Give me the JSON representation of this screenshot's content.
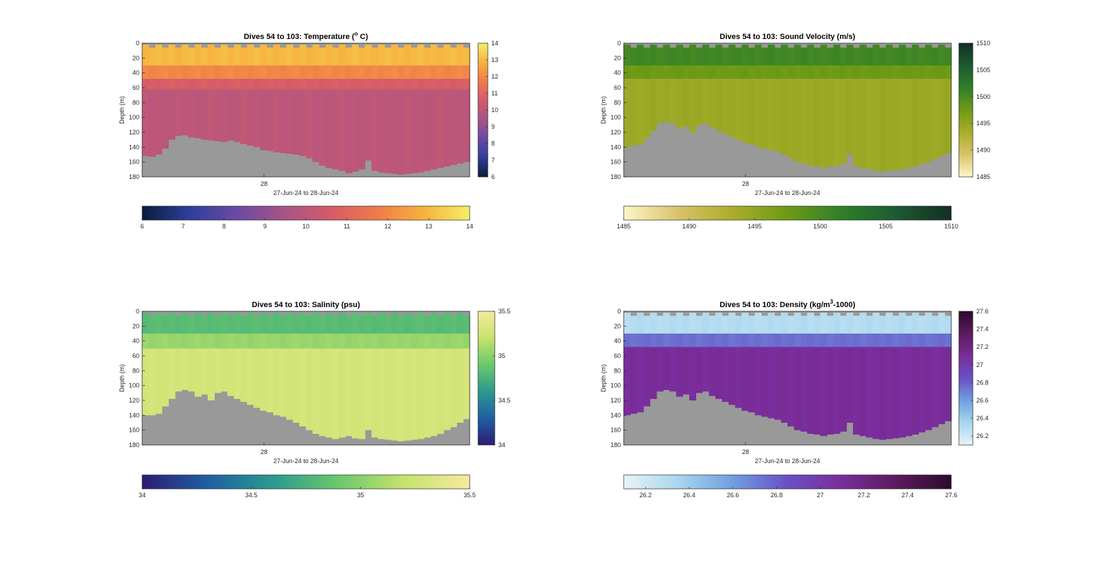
{
  "figure": {
    "background": "#ffffff",
    "no_data_color": "#999999"
  },
  "chart_data": [
    {
      "type": "heatmap",
      "title_main": "Dives 54 to 103: Temperature (",
      "title_sup": "o",
      "title_end": " C)",
      "xlabel": "27-Jun-24 to 28-Jun-24",
      "ylabel": "Depth (m)",
      "x_tick_labels": [
        "28"
      ],
      "y_tick_labels": [
        "0",
        "20",
        "40",
        "60",
        "80",
        "100",
        "120",
        "140",
        "160",
        "180"
      ],
      "ylim": [
        0,
        180
      ],
      "y_reversed": true,
      "dives": [
        54,
        103
      ],
      "cmap": [
        "#0b1b3a",
        "#2c3e9c",
        "#6a4aa3",
        "#a55488",
        "#d45a6a",
        "#f07a4a",
        "#f6b13e",
        "#f3ef66"
      ],
      "clim": [
        6,
        14
      ],
      "layers": [
        {
          "value": 13.0,
          "top": 0,
          "bottom": 30
        },
        {
          "value": 12.0,
          "top": 30,
          "bottom": 48
        },
        {
          "value": 10.7,
          "top": 48,
          "bottom": 62
        },
        {
          "value": 10.0,
          "top": 62,
          "bottom": 180
        }
      ],
      "colorbar_right_ticks": [
        "6",
        "7",
        "8",
        "9",
        "10",
        "11",
        "12",
        "13",
        "14"
      ],
      "colorbar_bottom_ticks": [
        "6",
        "7",
        "8",
        "9",
        "10",
        "11",
        "12",
        "13",
        "14"
      ],
      "bottom_depth": [
        152,
        153,
        150,
        142,
        130,
        125,
        124,
        127,
        128,
        130,
        131,
        132,
        133,
        131,
        133,
        136,
        138,
        140,
        144,
        145,
        147,
        148,
        149,
        150,
        152,
        155,
        160,
        165,
        168,
        170,
        172,
        175,
        173,
        170,
        158,
        172,
        174,
        175,
        176,
        177,
        176,
        175,
        174,
        172,
        170,
        168,
        166,
        164,
        162,
        160
      ]
    },
    {
      "type": "heatmap",
      "title_main": "Dives 54 to 103: Sound Velocity (m/s)",
      "title_sup": "",
      "title_end": "",
      "xlabel": "27-Jun-24 to 28-Jun-24",
      "ylabel": "Depth (m)",
      "x_tick_labels": [
        "28"
      ],
      "y_tick_labels": [
        "0",
        "20",
        "40",
        "60",
        "80",
        "100",
        "120",
        "140",
        "160",
        "180"
      ],
      "ylim": [
        0,
        180
      ],
      "y_reversed": true,
      "dives": [
        54,
        103
      ],
      "cmap": [
        "#fdf6c8",
        "#d9c26a",
        "#a9ad2a",
        "#6d9a16",
        "#2f7f2a",
        "#1c5a31",
        "#132e22"
      ],
      "clim": [
        1485,
        1510
      ],
      "layers": [
        {
          "value": 1500.5,
          "top": 0,
          "bottom": 30
        },
        {
          "value": 1497.5,
          "top": 30,
          "bottom": 48
        },
        {
          "value": 1494.3,
          "top": 48,
          "bottom": 180
        }
      ],
      "colorbar_right_ticks": [
        "1485",
        "1490",
        "1495",
        "1500",
        "1505",
        "1510"
      ],
      "colorbar_bottom_ticks": [
        "1485",
        "1490",
        "1495",
        "1500",
        "1505",
        "1510"
      ],
      "bottom_depth": [
        140,
        138,
        136,
        128,
        118,
        108,
        106,
        108,
        115,
        112,
        120,
        110,
        108,
        114,
        118,
        122,
        126,
        130,
        134,
        136,
        140,
        142,
        144,
        146,
        150,
        155,
        160,
        162,
        165,
        166,
        168,
        166,
        165,
        162,
        150,
        166,
        168,
        170,
        172,
        173,
        172,
        171,
        170,
        168,
        166,
        163,
        160,
        156,
        152,
        148
      ]
    },
    {
      "type": "heatmap",
      "title_main": "Dives 54 to 103: Salinity (psu)",
      "title_sup": "",
      "title_end": "",
      "xlabel": "27-Jun-24 to 28-Jun-24",
      "ylabel": "Depth (m)",
      "x_tick_labels": [
        "28"
      ],
      "y_tick_labels": [
        "0",
        "20",
        "40",
        "60",
        "80",
        "100",
        "120",
        "140",
        "160",
        "180"
      ],
      "ylim": [
        0,
        180
      ],
      "y_reversed": true,
      "dives": [
        54,
        103
      ],
      "cmap": [
        "#2b1c72",
        "#1f5fa3",
        "#2b9a8f",
        "#6ac86c",
        "#c7e26c",
        "#f6ea9e"
      ],
      "clim": [
        34,
        35.5
      ],
      "layers": [
        {
          "value": 34.82,
          "top": 0,
          "bottom": 30
        },
        {
          "value": 35.05,
          "top": 30,
          "bottom": 50
        },
        {
          "value": 35.28,
          "top": 50,
          "bottom": 180
        }
      ],
      "colorbar_right_ticks": [
        "34",
        "34.5",
        "35",
        "35.5"
      ],
      "colorbar_bottom_ticks": [
        "34",
        "34.5",
        "35",
        "35.5"
      ],
      "bottom_depth": [
        140,
        140,
        138,
        128,
        118,
        108,
        106,
        108,
        115,
        112,
        120,
        110,
        108,
        114,
        118,
        122,
        126,
        130,
        134,
        136,
        140,
        142,
        146,
        150,
        155,
        160,
        165,
        168,
        170,
        172,
        170,
        168,
        171,
        172,
        160,
        170,
        172,
        173,
        174,
        175,
        174,
        173,
        172,
        170,
        168,
        165,
        160,
        156,
        150,
        145
      ]
    },
    {
      "type": "heatmap",
      "title_main": "Dives 54 to 103: Density (kg/m",
      "title_sup": "3",
      "title_end": "-1000)",
      "xlabel": "27-Jun-24 to 28-Jun-24",
      "ylabel": "Depth (m)",
      "x_tick_labels": [
        "28"
      ],
      "y_tick_labels": [
        "0",
        "20",
        "40",
        "60",
        "80",
        "100",
        "120",
        "140",
        "160",
        "180"
      ],
      "ylim": [
        0,
        180
      ],
      "y_reversed": true,
      "dives": [
        54,
        103
      ],
      "cmap": [
        "#e8f3f5",
        "#a8d6ee",
        "#6f9fe0",
        "#6a4fc6",
        "#7a2d9a",
        "#5c1a5e",
        "#2c0b2e"
      ],
      "clim": [
        26.1,
        27.6
      ],
      "layers": [
        {
          "value": 26.3,
          "top": 0,
          "bottom": 30
        },
        {
          "value": 26.75,
          "top": 30,
          "bottom": 48
        },
        {
          "value": 27.1,
          "top": 48,
          "bottom": 180
        }
      ],
      "colorbar_right_ticks": [
        "26.2",
        "26.4",
        "26.6",
        "26.8",
        "27",
        "27.2",
        "27.4",
        "27.6"
      ],
      "colorbar_bottom_ticks": [
        "26.2",
        "26.4",
        "26.6",
        "26.8",
        "27",
        "27.2",
        "27.4",
        "27.6"
      ],
      "bottom_depth": [
        140,
        138,
        136,
        128,
        118,
        108,
        106,
        108,
        115,
        112,
        120,
        110,
        108,
        114,
        118,
        122,
        126,
        130,
        134,
        136,
        140,
        142,
        144,
        146,
        150,
        155,
        160,
        162,
        165,
        166,
        168,
        166,
        165,
        162,
        150,
        166,
        168,
        170,
        172,
        173,
        172,
        171,
        170,
        168,
        166,
        163,
        160,
        156,
        152,
        148
      ]
    }
  ]
}
